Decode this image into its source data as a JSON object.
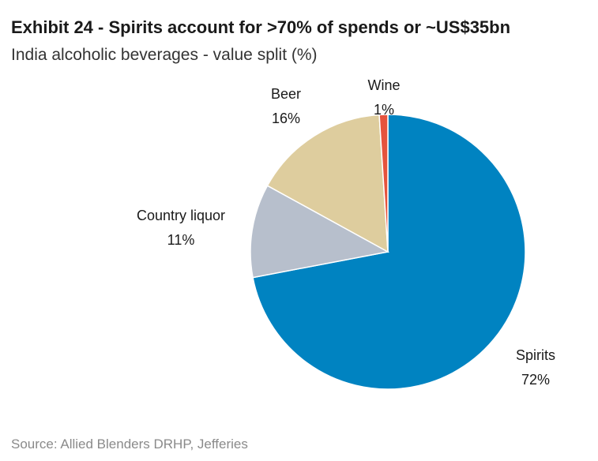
{
  "header": {
    "title": "Exhibit 24 - Spirits account for >70% of spends or ~US$35bn",
    "subtitle": "India alcoholic beverages - value split (%)"
  },
  "footer": {
    "source": "Source: Allied Blenders DRHP, Jefferies"
  },
  "chart_data": {
    "type": "pie",
    "title": "Exhibit 24 - Spirits account for >70% of spends or ~US$35bn",
    "subtitle": "India alcoholic beverages - value split (%)",
    "start_angle_deg": 0,
    "direction": "clockwise",
    "slices": [
      {
        "name": "Spirits",
        "value": 72,
        "label": "72%",
        "color": "#0083C1"
      },
      {
        "name": "Country liquor",
        "value": 11,
        "label": "11%",
        "color": "#B7BFCC"
      },
      {
        "name": "Beer",
        "value": 16,
        "label": "16%",
        "color": "#DECD9E"
      },
      {
        "name": "Wine",
        "value": 1,
        "label": "1%",
        "color": "#E5533D"
      }
    ],
    "legend": "none"
  }
}
